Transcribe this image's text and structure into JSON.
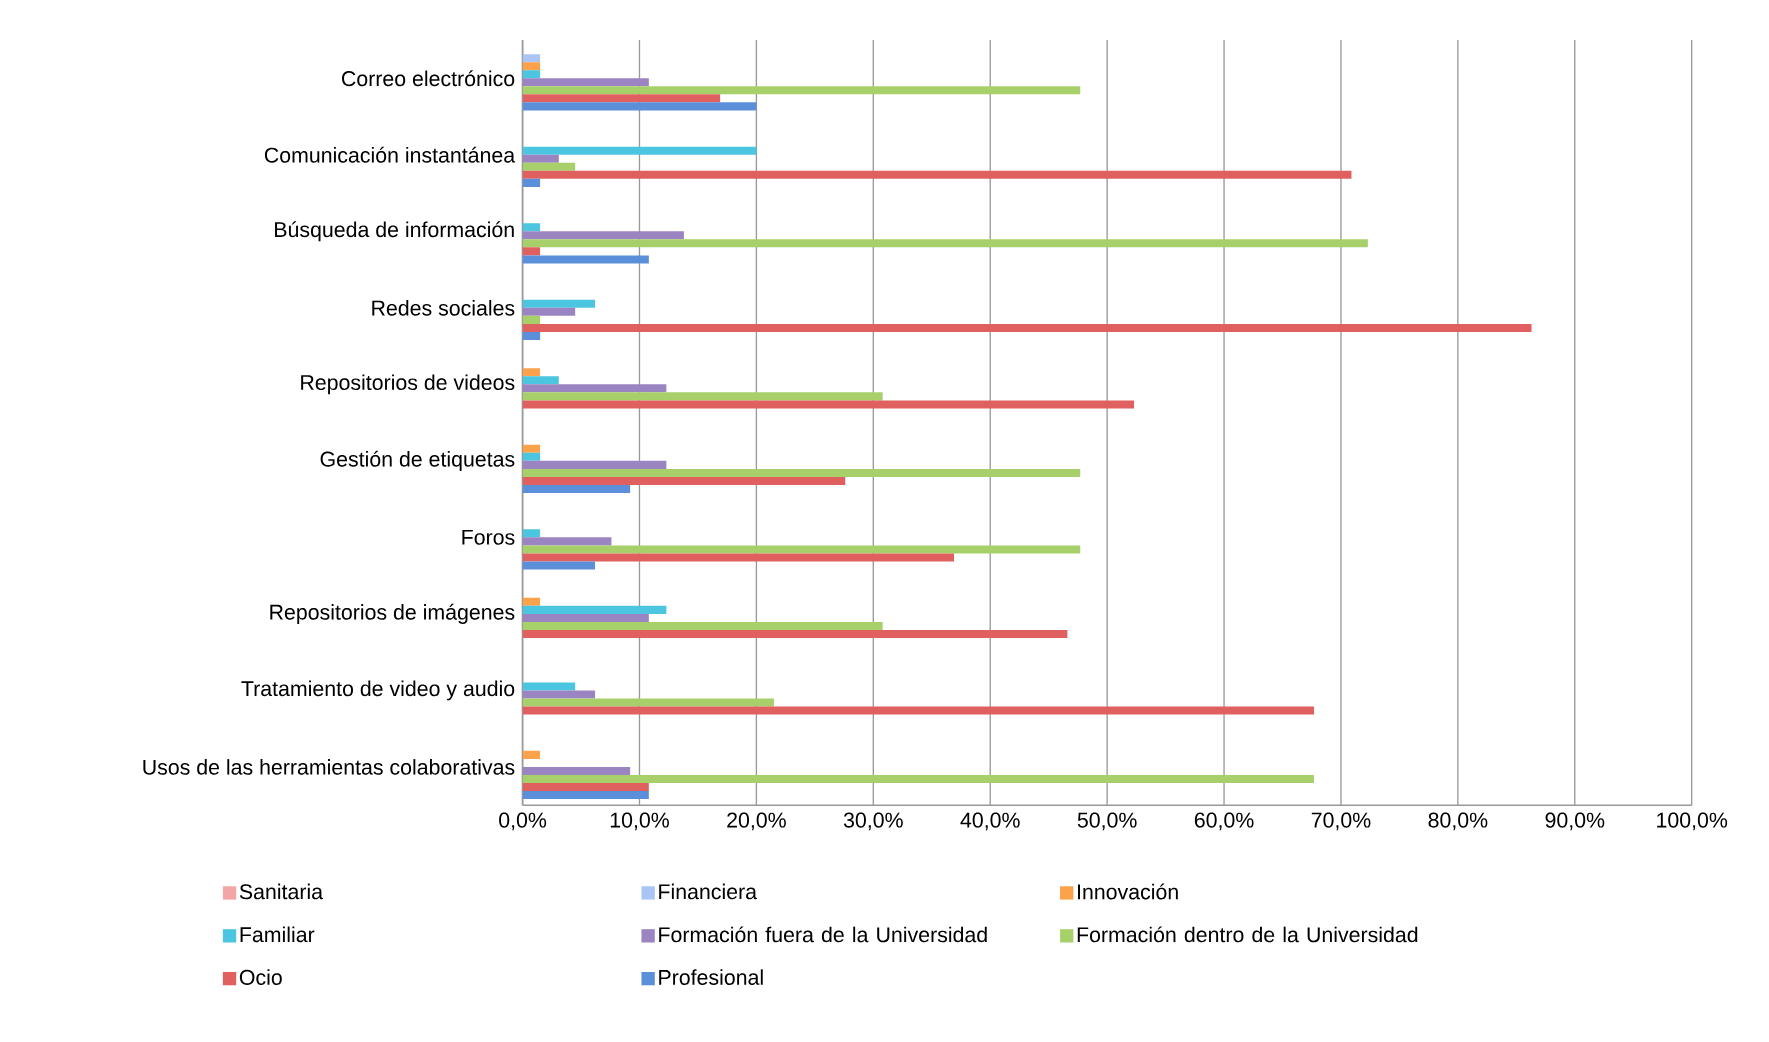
{
  "chart_data": {
    "type": "bar",
    "orientation": "horizontal",
    "categories": [
      "Correo electrónico",
      "Comunicación instantánea",
      "Búsqueda de información",
      "Redes sociales",
      "Repositorios de videos",
      "Gestión de etiquetas",
      "Foros",
      "Repositorios de imágenes",
      "Tratamiento de video y audio",
      "Usos de las herramientas colaborativas"
    ],
    "series": [
      {
        "name": "Sanitaria",
        "color": "#f4a6a6",
        "values": [
          0,
          0,
          0,
          0,
          0,
          0,
          0,
          0,
          0,
          0
        ]
      },
      {
        "name": "Financiera",
        "color": "#a9c4f5",
        "values": [
          1.5,
          0,
          0,
          0,
          0,
          0,
          0,
          0,
          0,
          0
        ]
      },
      {
        "name": "Innovación",
        "color": "#fba24a",
        "values": [
          1.5,
          0,
          0,
          0,
          1.5,
          1.5,
          0,
          1.5,
          0,
          1.5
        ]
      },
      {
        "name": "Familiar",
        "color": "#4bc5e0",
        "values": [
          1.5,
          20.0,
          1.5,
          6.2,
          3.1,
          1.5,
          1.5,
          12.3,
          4.5,
          0
        ]
      },
      {
        "name": "Formación fuera de la Universidad",
        "color": "#9b84c2",
        "values": [
          10.8,
          3.1,
          13.8,
          4.5,
          12.3,
          12.3,
          7.6,
          10.8,
          6.2,
          9.2
        ]
      },
      {
        "name": "Formación dentro de la Universidad",
        "color": "#a8d06a",
        "values": [
          47.7,
          4.5,
          72.3,
          1.5,
          30.8,
          47.7,
          47.7,
          30.8,
          21.5,
          67.7
        ]
      },
      {
        "name": "Ocio",
        "color": "#e0605f",
        "values": [
          16.9,
          70.9,
          1.5,
          86.3,
          52.3,
          27.6,
          36.9,
          46.6,
          67.7,
          10.8
        ]
      },
      {
        "name": "Profesional",
        "color": "#5b8fd9",
        "values": [
          20.0,
          1.5,
          10.8,
          1.5,
          0,
          9.2,
          6.2,
          0,
          0,
          10.8
        ]
      }
    ],
    "xlim": [
      0,
      100
    ],
    "xticks": [
      {
        "value": 0,
        "label": "0,0%"
      },
      {
        "value": 10,
        "label": "10,0%"
      },
      {
        "value": 20,
        "label": "20,0%"
      },
      {
        "value": 30,
        "label": "30,0%"
      },
      {
        "value": 40,
        "label": "40,0%"
      },
      {
        "value": 50,
        "label": "50,0%"
      },
      {
        "value": 60,
        "label": "60,0%"
      },
      {
        "value": 70,
        "label": "70,0%"
      },
      {
        "value": 80,
        "label": "80,0%"
      },
      {
        "value": 90,
        "label": "90,0%"
      },
      {
        "value": 100,
        "label": "100,0%"
      }
    ],
    "grid": "x",
    "legend": "bottom"
  }
}
